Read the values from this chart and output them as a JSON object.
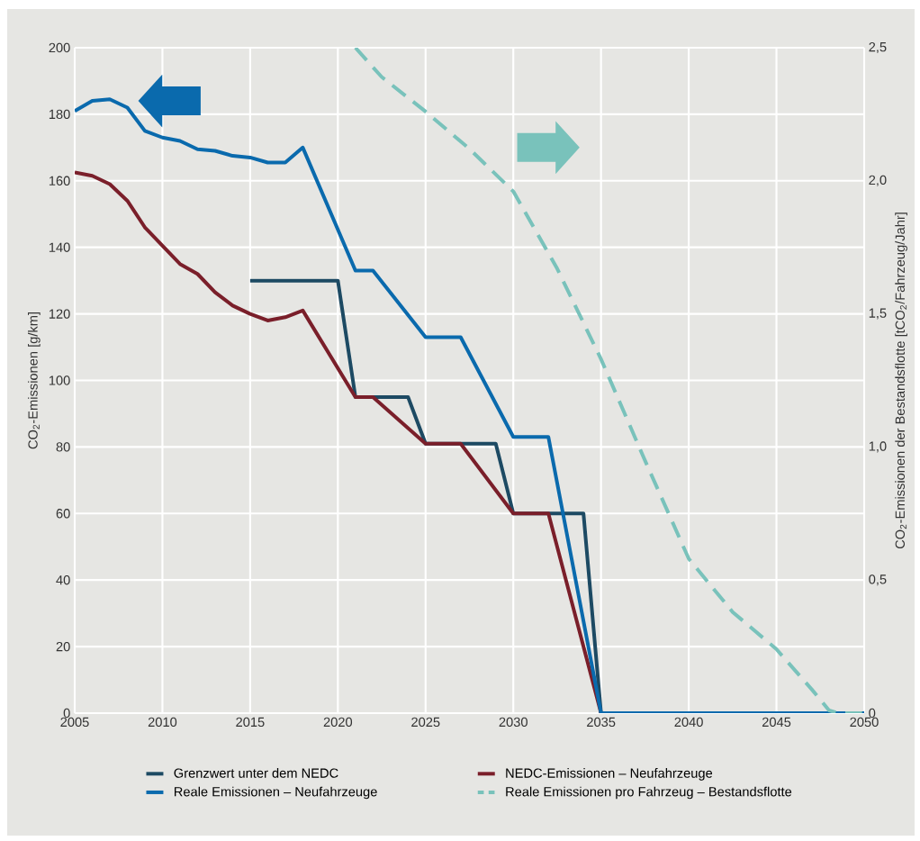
{
  "chart_data": {
    "type": "line",
    "xlabel": null,
    "ylabel": "CO$_{2}$-Emissionen [g/km]",
    "y2label": "CO$_{2}$-Emissionen der Bestandsflotte [tCO$_{2}$/Fahrzeug/Jahr]",
    "xlim": [
      2005,
      2050
    ],
    "xticks": [
      2005,
      2010,
      2015,
      2020,
      2025,
      2030,
      2035,
      2040,
      2045,
      2050
    ],
    "ylim": [
      0,
      200
    ],
    "yticks": [
      0,
      20,
      40,
      60,
      80,
      100,
      120,
      140,
      160,
      180,
      200
    ],
    "y2lim": [
      0,
      2.5
    ],
    "y2ticks": [
      0,
      {
        "value": 0.5,
        "label": "0,5"
      },
      {
        "value": 1.0,
        "label": "1,0"
      },
      {
        "value": 1.5,
        "label": "1,5"
      },
      {
        "value": 2.0,
        "label": "2,0"
      },
      {
        "value": 2.5,
        "label": "2,5"
      }
    ],
    "grid": true,
    "legend": "bottom",
    "line_style": "solid",
    "marker": "none",
    "series": [
      {
        "name": "Grenzwert unter dem NEDC",
        "color": "#1d4a63",
        "x": [
          2015,
          2020,
          2021,
          2024,
          2025,
          2029,
          2030,
          2034,
          2035
        ],
        "values": [
          130,
          130,
          95,
          95,
          81,
          81,
          60,
          60,
          0
        ]
      },
      {
        "name": "NEDC-Emissionen – Neufahrzeuge",
        "color": "#7a1f2a",
        "x": [
          2005,
          2006,
          2007,
          2008,
          2009,
          2010,
          2011,
          2012,
          2013,
          2014,
          2015,
          2016,
          2017,
          2018,
          2021,
          2022,
          2025,
          2027,
          2030,
          2032,
          2035
        ],
        "values": [
          162.5,
          161.5,
          159,
          154,
          146,
          140.5,
          135,
          132,
          126.5,
          122.5,
          120,
          118,
          119,
          121,
          95,
          95,
          81,
          81,
          60,
          60,
          0
        ]
      },
      {
        "name": "Reale Emissionen – Neufahrzeuge",
        "color": "#0a6aad",
        "x": [
          2005,
          2006,
          2007,
          2008,
          2009,
          2010,
          2011,
          2012,
          2013,
          2014,
          2015,
          2016,
          2017,
          2018,
          2021,
          2022,
          2025,
          2027,
          2030,
          2032,
          2035,
          2050
        ],
        "values": [
          181,
          184,
          184.5,
          182,
          175,
          173,
          172,
          169.5,
          169,
          167.5,
          167,
          165.5,
          165.5,
          170,
          133,
          133,
          113,
          113,
          83,
          83,
          0,
          0
        ]
      },
      {
        "name": "Reale Emissionen pro Fahrzeug – Bestandsflotte",
        "color": "#79c2bb",
        "axis": "y2",
        "line_style": "dashed",
        "x": [
          2021,
          2022.5,
          2025,
          2027.5,
          2030,
          2032.5,
          2035,
          2037.5,
          2040,
          2042.5,
          2045,
          2047,
          2048,
          2048.5,
          2050
        ],
        "values": [
          2.5,
          2.39,
          2.26,
          2.12,
          1.96,
          1.67,
          1.33,
          0.95,
          0.58,
          0.38,
          0.24,
          0.09,
          0.01,
          0,
          0
        ]
      }
    ]
  }
}
